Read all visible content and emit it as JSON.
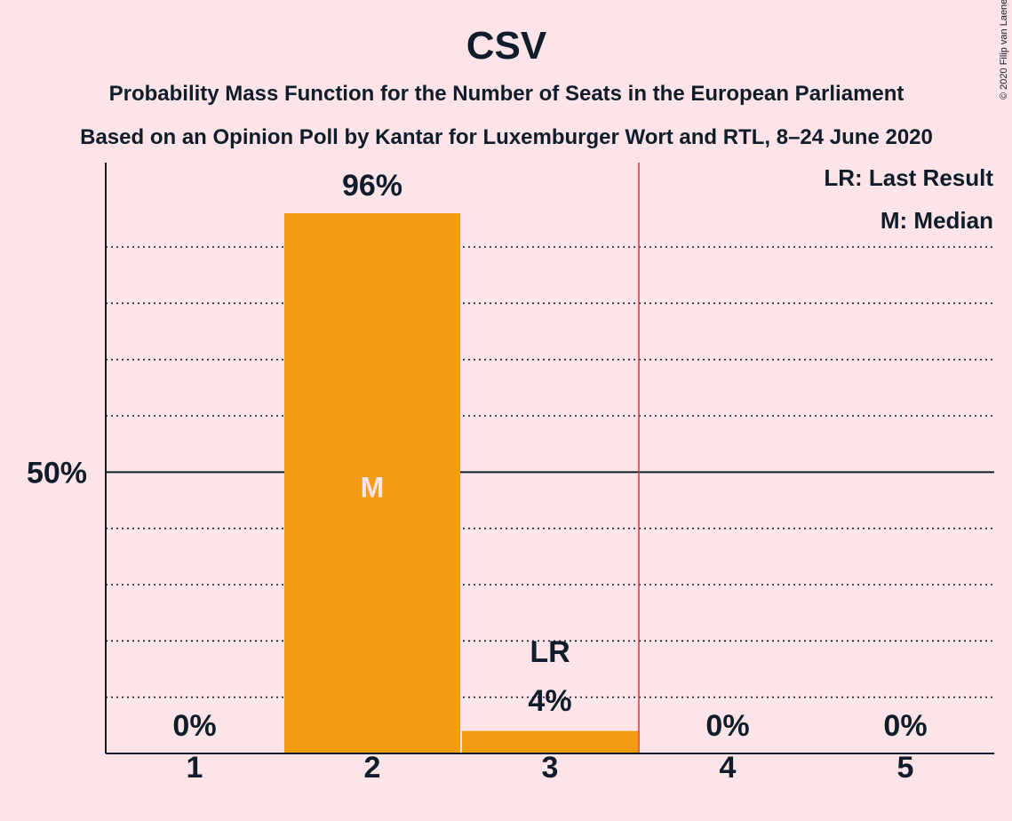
{
  "chart_data": {
    "type": "bar",
    "title": "CSV",
    "subtitle_1": "Probability Mass Function for the Number of Seats in the European Parliament",
    "subtitle_2": "Based on an Opinion Poll by Kantar for Luxemburger Wort and RTL, 8–24 June 2020",
    "categories": [
      "1",
      "2",
      "3",
      "4",
      "5"
    ],
    "values": [
      0,
      96,
      4,
      0,
      0
    ],
    "value_labels": [
      "0%",
      "96%",
      "4%",
      "0%",
      "0%"
    ],
    "ylim": [
      0,
      105
    ],
    "y_tick_label": "50%",
    "y_tick_value": 50,
    "minor_gridlines": [
      10,
      20,
      30,
      40,
      60,
      70,
      80,
      90
    ],
    "median_category": "2",
    "median_label": "M",
    "last_result_category": "3",
    "last_result_label": "LR",
    "last_result_line_after_category": "3",
    "legend": [
      "LR: Last Result",
      "M: Median"
    ],
    "legend_position": "top-right",
    "copyright": "© 2020 Filip van Laenen",
    "colors": {
      "bar": "#f39c12",
      "background": "#fde4e8",
      "text": "#0f1c2a",
      "last_result_line": "#e0303a"
    }
  }
}
